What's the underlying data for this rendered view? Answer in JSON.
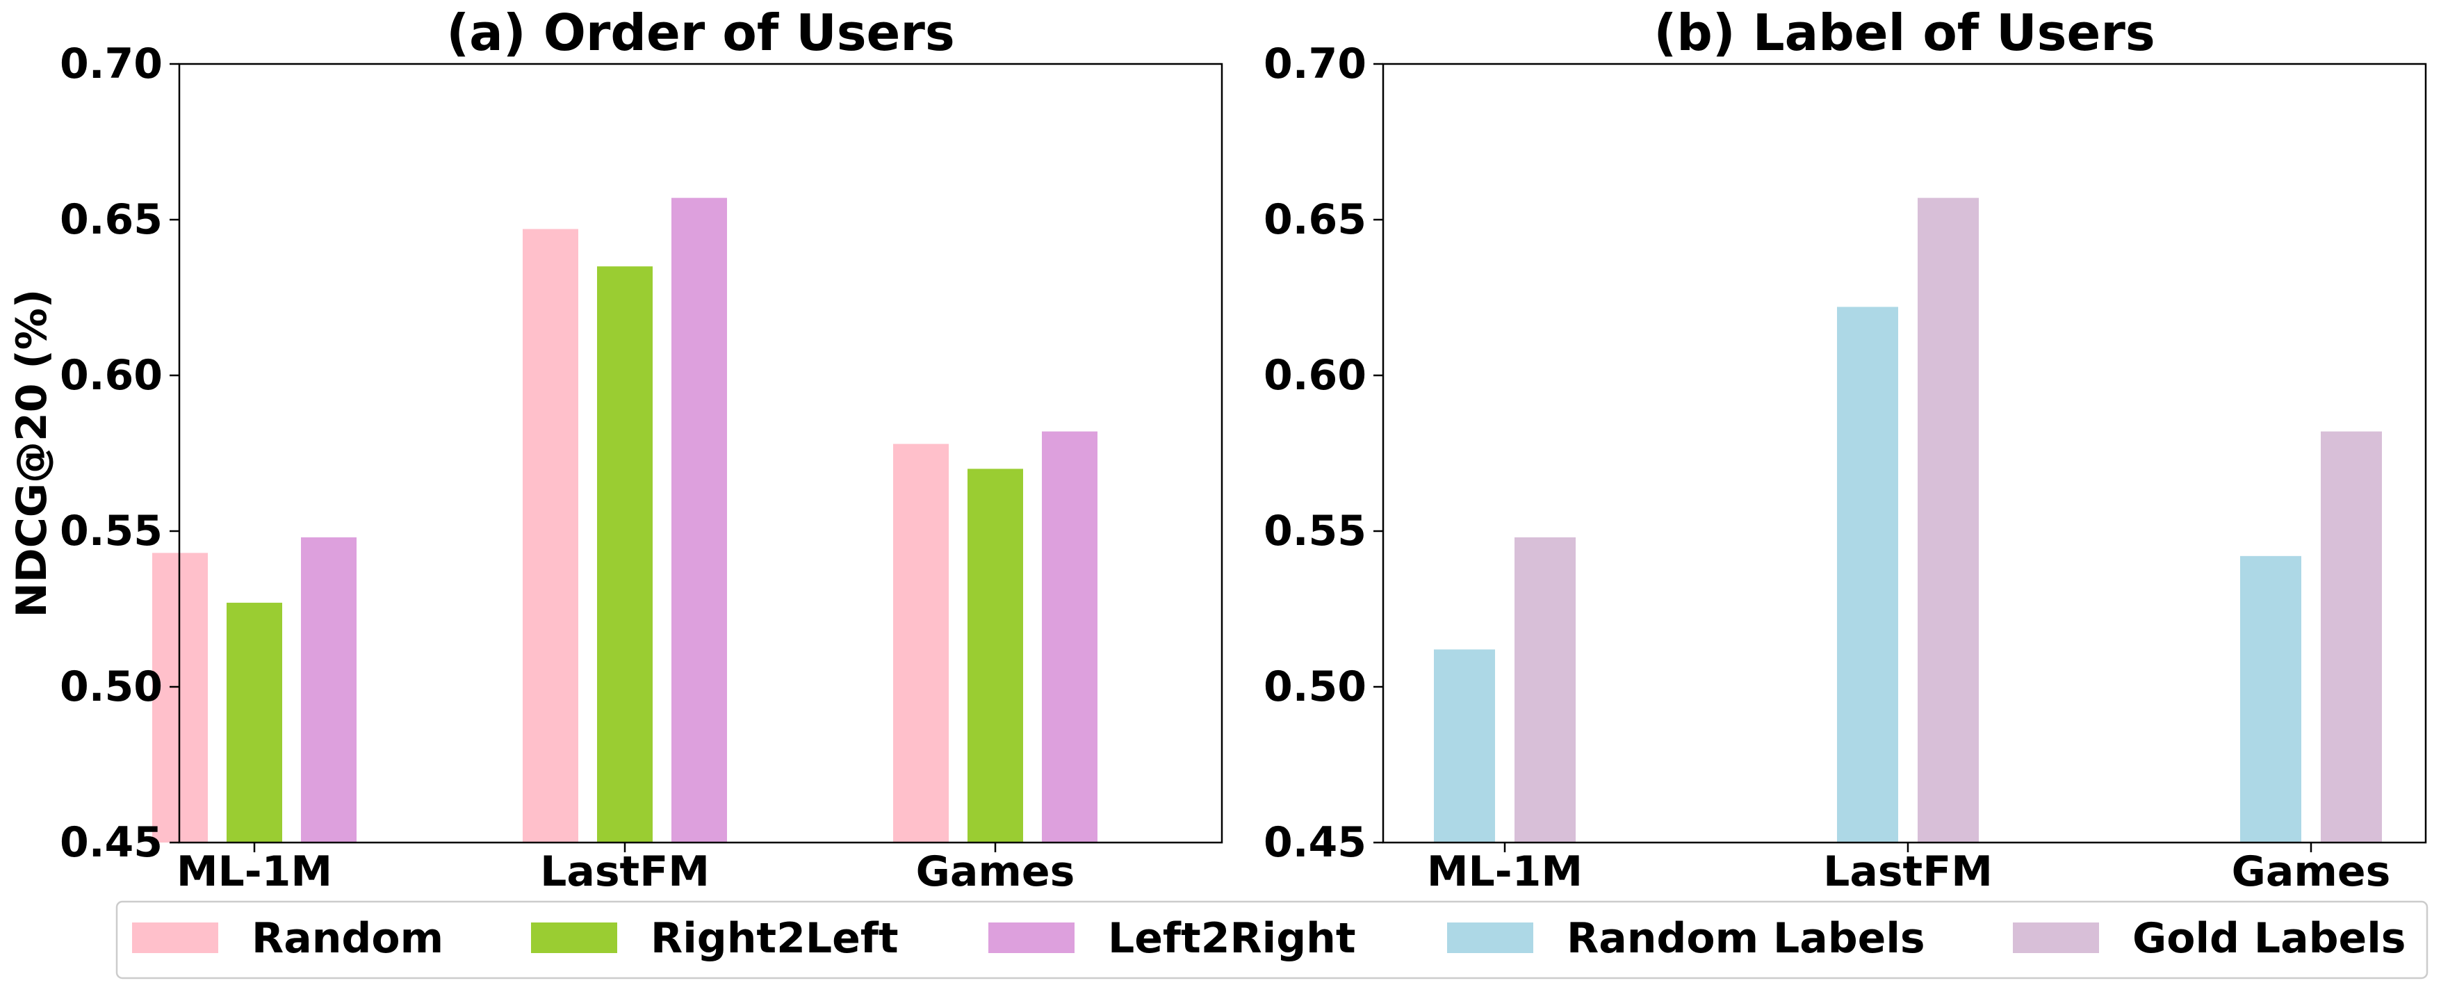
{
  "chart_data": [
    {
      "type": "bar",
      "title": "(a) Order of Users",
      "ylabel": "NDCG@20 (%)",
      "xlabel": "",
      "categories": [
        "ML-1M",
        "LastFM",
        "Games"
      ],
      "ylim": [
        0.45,
        0.7
      ],
      "yticks": [
        "0.45",
        "0.50",
        "0.55",
        "0.60",
        "0.65",
        "0.70"
      ],
      "series": [
        {
          "name": "Random",
          "color": "#ffc0cb",
          "values": [
            0.543,
            0.647,
            0.578
          ]
        },
        {
          "name": "Right2Left",
          "color": "#9acd32",
          "values": [
            0.527,
            0.635,
            0.57
          ]
        },
        {
          "name": "Left2Right",
          "color": "#dda0dd",
          "values": [
            0.548,
            0.657,
            0.582
          ]
        }
      ]
    },
    {
      "type": "bar",
      "title": "(b) Label of Users",
      "ylabel": "",
      "xlabel": "",
      "categories": [
        "ML-1M",
        "LastFM",
        "Games"
      ],
      "ylim": [
        0.45,
        0.7
      ],
      "yticks": [
        "0.45",
        "0.50",
        "0.55",
        "0.60",
        "0.65",
        "0.70"
      ],
      "series": [
        {
          "name": "Random Labels",
          "color": "#add8e6",
          "values": [
            0.512,
            0.622,
            0.542
          ]
        },
        {
          "name": "Gold Labels",
          "color": "#d8bfd8",
          "values": [
            0.548,
            0.657,
            0.582
          ]
        }
      ]
    }
  ],
  "legend": {
    "placement": "bottom",
    "items": [
      {
        "label": "Random",
        "color": "#ffc0cb"
      },
      {
        "label": "Right2Left",
        "color": "#9acd32"
      },
      {
        "label": "Left2Right",
        "color": "#dda0dd"
      },
      {
        "label": "Random Labels",
        "color": "#add8e6"
      },
      {
        "label": "Gold Labels",
        "color": "#d8bfd8"
      }
    ]
  }
}
